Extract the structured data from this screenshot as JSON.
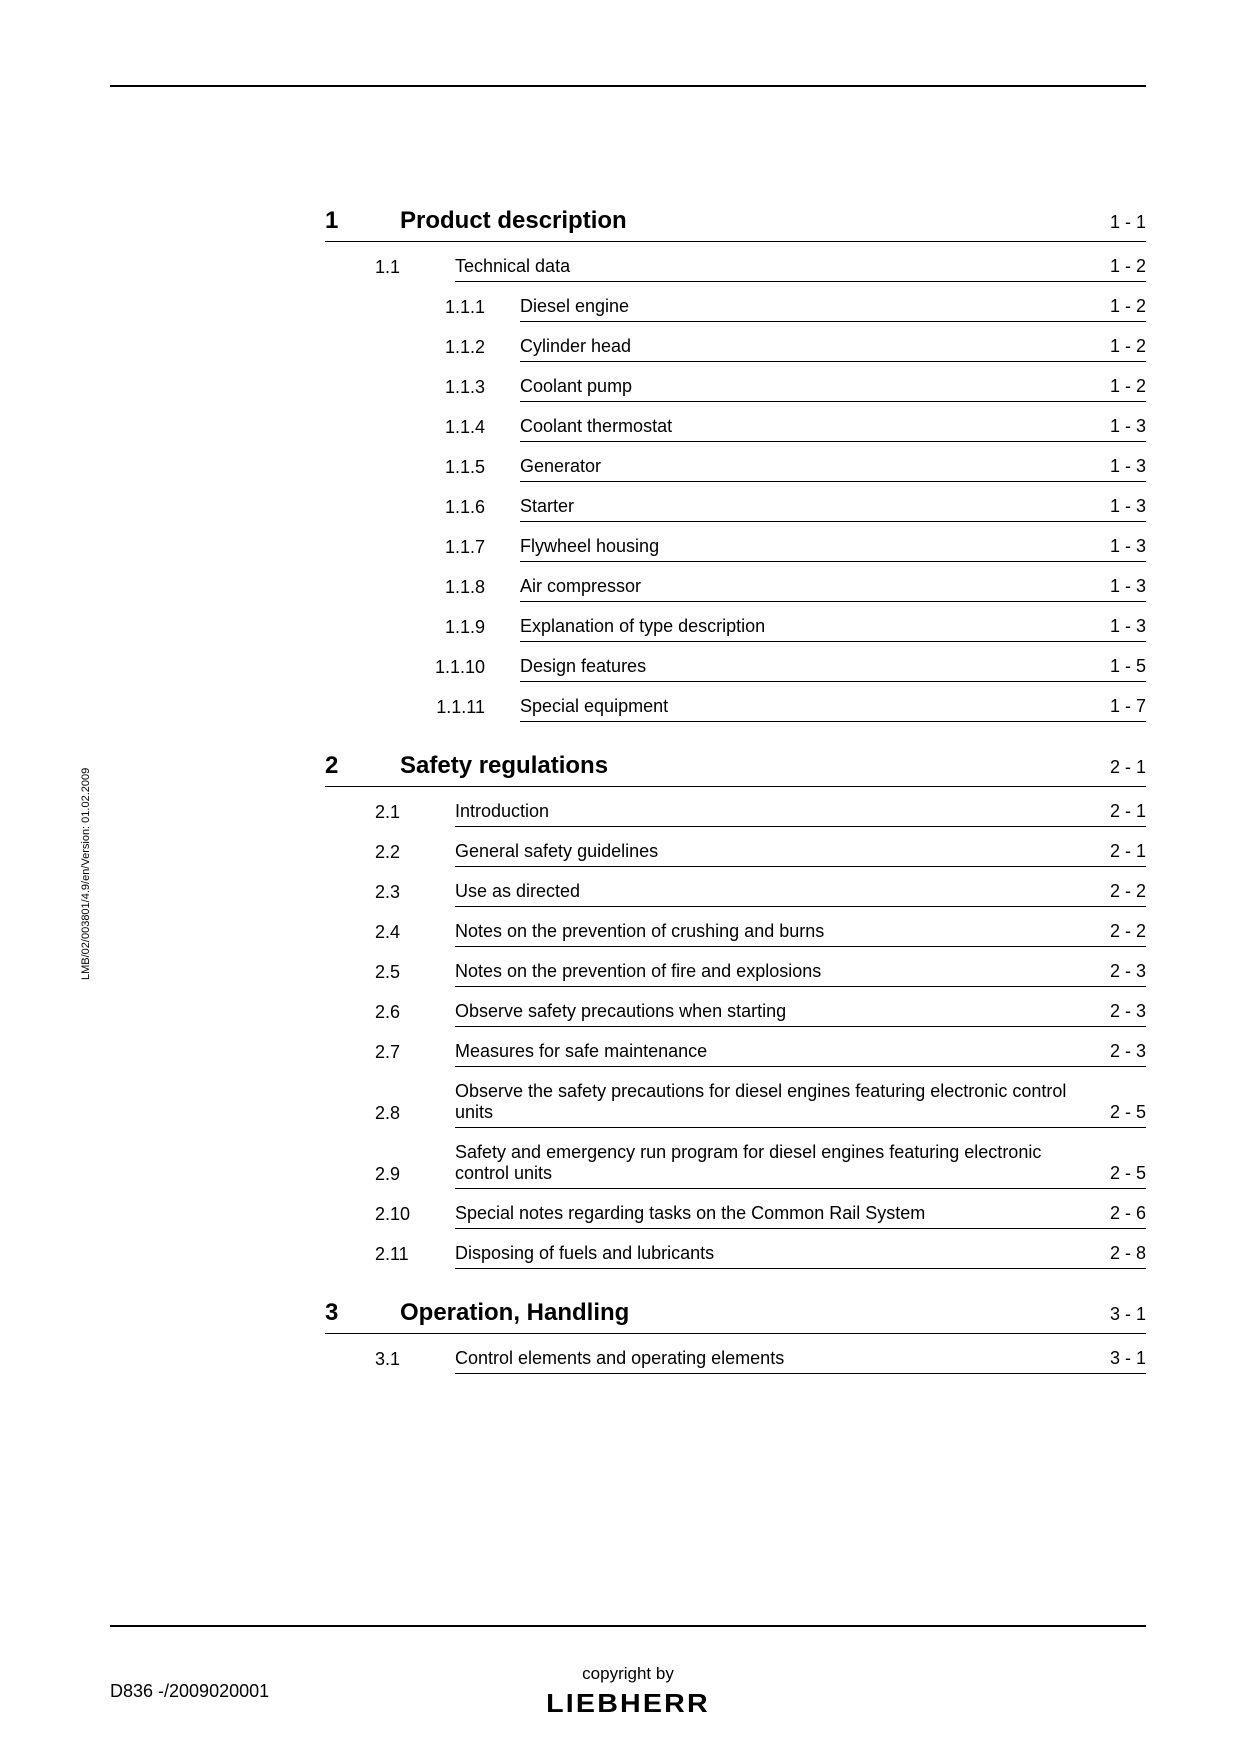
{
  "sidenote": "LMB/02/003801/4.9/en/Version: 01.02.2009",
  "footer": {
    "doc_id": "D836 -/2009020001",
    "copyright": "copyright by",
    "brand": "LIEBHERR"
  },
  "toc": [
    {
      "num": "1",
      "title": "Product description",
      "page": "1 - 1",
      "children": [
        {
          "num": "1.1",
          "title": "Technical data",
          "page": "1 - 2",
          "children": [
            {
              "num": "1.1.1",
              "title": "Diesel engine",
              "page": "1 - 2"
            },
            {
              "num": "1.1.2",
              "title": "Cylinder head",
              "page": "1 - 2"
            },
            {
              "num": "1.1.3",
              "title": "Coolant pump",
              "page": "1 - 2"
            },
            {
              "num": "1.1.4",
              "title": "Coolant thermostat",
              "page": "1 - 3"
            },
            {
              "num": "1.1.5",
              "title": "Generator",
              "page": "1 - 3"
            },
            {
              "num": "1.1.6",
              "title": "Starter",
              "page": "1 - 3"
            },
            {
              "num": "1.1.7",
              "title": "Flywheel housing",
              "page": "1 - 3"
            },
            {
              "num": "1.1.8",
              "title": "Air compressor",
              "page": "1 - 3"
            },
            {
              "num": "1.1.9",
              "title": "Explanation of type description",
              "page": "1 - 3"
            },
            {
              "num": "1.1.10",
              "title": "Design features",
              "page": "1 - 5"
            },
            {
              "num": "1.1.11",
              "title": "Special equipment",
              "page": "1 - 7"
            }
          ]
        }
      ]
    },
    {
      "num": "2",
      "title": "Safety regulations",
      "page": "2 - 1",
      "children": [
        {
          "num": "2.1",
          "title": "Introduction",
          "page": "2 - 1"
        },
        {
          "num": "2.2",
          "title": "General safety guidelines",
          "page": "2 - 1"
        },
        {
          "num": "2.3",
          "title": "Use as directed",
          "page": "2 - 2"
        },
        {
          "num": "2.4",
          "title": "Notes on the prevention of crushing and burns",
          "page": "2 - 2"
        },
        {
          "num": "2.5",
          "title": "Notes on the prevention of fire and explosions",
          "page": "2 - 3"
        },
        {
          "num": "2.6",
          "title": "Observe safety precautions when starting",
          "page": "2 - 3"
        },
        {
          "num": "2.7",
          "title": "Measures for safe maintenance",
          "page": "2 - 3"
        },
        {
          "num": "2.8",
          "title": "Observe the safety precautions for diesel engines featuring electronic control units",
          "page": "2 - 5"
        },
        {
          "num": "2.9",
          "title": "Safety and emergency run program for diesel engines featuring electronic control units",
          "page": "2 - 5"
        },
        {
          "num": "2.10",
          "title": "Special notes regarding tasks on the Common Rail System",
          "page": "2 - 6"
        },
        {
          "num": "2.11",
          "title": "Disposing of fuels and lubricants",
          "page": "2 - 8"
        }
      ]
    },
    {
      "num": "3",
      "title": "Operation, Handling",
      "page": "3 - 1",
      "children": [
        {
          "num": "3.1",
          "title": "Control elements and operating elements",
          "page": "3 - 1"
        }
      ]
    }
  ]
}
